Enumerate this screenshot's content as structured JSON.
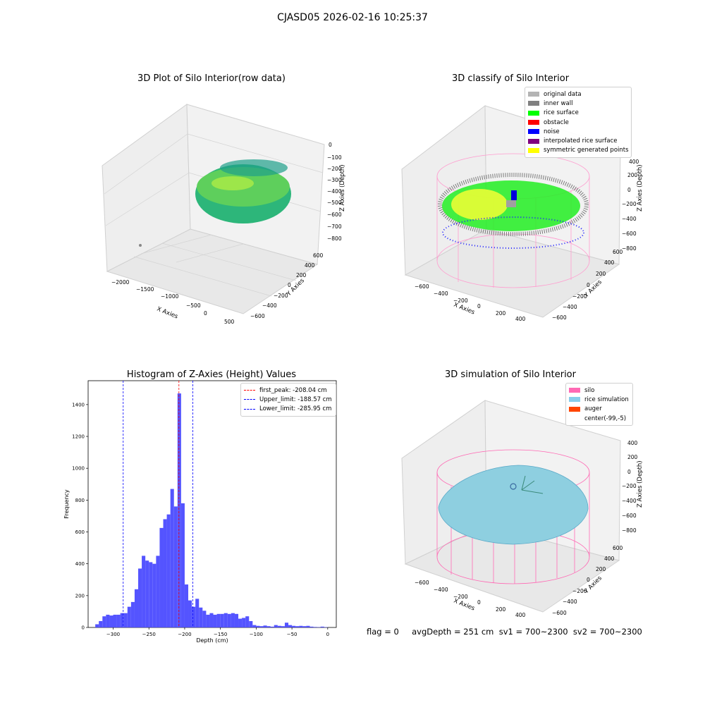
{
  "header": {
    "title": "CJASD05 2026-02-16 10:25:37"
  },
  "panels": {
    "raw": {
      "title": "3D Plot of Silo Interior(row data)",
      "x_label": "X Axies",
      "y_label": "Y Axies",
      "z_label": "Z Axies (Depth)",
      "x_ticks": [
        "−2000",
        "−1500",
        "−1000",
        "−500",
        "0",
        "500"
      ],
      "y_ticks": [
        "−600",
        "−400",
        "−200",
        "0",
        "200",
        "400",
        "600"
      ],
      "z_ticks": [
        "0",
        "−100",
        "−200",
        "−300",
        "−400",
        "−500",
        "−600",
        "−700",
        "−800"
      ]
    },
    "classify": {
      "title": "3D classify of Silo Interior",
      "x_label": "X Axies",
      "y_label": "Y Axies",
      "z_label": "Z Axies (Depth)",
      "x_ticks": [
        "−600",
        "−400",
        "−200",
        "0",
        "200",
        "400"
      ],
      "y_ticks": [
        "−600",
        "−400",
        "−200",
        "0",
        "200",
        "400",
        "600"
      ],
      "z_ticks": [
        "400",
        "200",
        "0",
        "−200",
        "−400",
        "−600",
        "−800"
      ],
      "legend": [
        {
          "label": "original data",
          "color": "#b4b4b4"
        },
        {
          "label": "inner wall",
          "color": "#808080"
        },
        {
          "label": "rice surface",
          "color": "#00ff00"
        },
        {
          "label": "obstacle",
          "color": "#ff0000"
        },
        {
          "label": "noise",
          "color": "#0000ff"
        },
        {
          "label": "interpolated rice surface",
          "color": "#800080"
        },
        {
          "label": "symmetric generated points",
          "color": "#ffff00"
        }
      ]
    },
    "simulation": {
      "title": "3D simulation of Silo Interior",
      "x_label": "X Axies",
      "y_label": "Y Axies",
      "z_label": "Z Axies (Depth)",
      "x_ticks": [
        "−600",
        "−400",
        "−200",
        "0",
        "200",
        "400"
      ],
      "y_ticks": [
        "−600",
        "−400",
        "−200",
        "0",
        "200",
        "400",
        "600"
      ],
      "z_ticks": [
        "400",
        "200",
        "0",
        "−200",
        "−400",
        "−600",
        "−800"
      ],
      "legend": [
        {
          "label": "silo",
          "color": "#ff69b4"
        },
        {
          "label": "rice simulation",
          "color": "#87ceeb"
        },
        {
          "label": "auger",
          "color": "#ff4500"
        },
        {
          "label": "center(-99,-5)",
          "color": ""
        }
      ]
    }
  },
  "chart_data": {
    "type": "bar",
    "title": "Histogram of Z-Axies (Height) Values",
    "xlabel": "Depth (cm)",
    "ylabel": "Frequency",
    "xlim": [
      -335,
      12
    ],
    "ylim": [
      0,
      1550
    ],
    "x_ticks": [
      -300,
      -250,
      -200,
      -150,
      -100,
      -50,
      0
    ],
    "y_ticks": [
      0,
      200,
      400,
      600,
      800,
      1000,
      1200,
      1400
    ],
    "bar_color": "#4b4bff",
    "bins": [
      [
        -325,
        -320,
        20
      ],
      [
        -320,
        -315,
        40
      ],
      [
        -315,
        -310,
        70
      ],
      [
        -310,
        -305,
        80
      ],
      [
        -305,
        -300,
        75
      ],
      [
        -300,
        -295,
        80
      ],
      [
        -295,
        -290,
        80
      ],
      [
        -290,
        -285,
        90
      ],
      [
        -285,
        -280,
        90
      ],
      [
        -280,
        -275,
        130
      ],
      [
        -275,
        -270,
        160
      ],
      [
        -270,
        -265,
        240
      ],
      [
        -265,
        -260,
        370
      ],
      [
        -260,
        -255,
        450
      ],
      [
        -255,
        -250,
        420
      ],
      [
        -250,
        -245,
        410
      ],
      [
        -245,
        -240,
        400
      ],
      [
        -240,
        -235,
        450
      ],
      [
        -235,
        -230,
        625
      ],
      [
        -230,
        -225,
        680
      ],
      [
        -225,
        -220,
        710
      ],
      [
        -220,
        -215,
        870
      ],
      [
        -215,
        -210,
        760
      ],
      [
        -210,
        -205,
        1470
      ],
      [
        -205,
        -200,
        780
      ],
      [
        -200,
        -195,
        270
      ],
      [
        -195,
        -190,
        170
      ],
      [
        -190,
        -185,
        130
      ],
      [
        -185,
        -180,
        180
      ],
      [
        -180,
        -175,
        125
      ],
      [
        -175,
        -170,
        105
      ],
      [
        -170,
        -165,
        80
      ],
      [
        -165,
        -160,
        90
      ],
      [
        -160,
        -155,
        80
      ],
      [
        -155,
        -150,
        85
      ],
      [
        -150,
        -145,
        85
      ],
      [
        -145,
        -140,
        90
      ],
      [
        -140,
        -135,
        85
      ],
      [
        -135,
        -130,
        90
      ],
      [
        -130,
        -125,
        85
      ],
      [
        -125,
        -120,
        55
      ],
      [
        -120,
        -115,
        60
      ],
      [
        -115,
        -110,
        70
      ],
      [
        -110,
        -105,
        40
      ],
      [
        -105,
        -100,
        15
      ],
      [
        -100,
        -95,
        10
      ],
      [
        -95,
        -90,
        8
      ],
      [
        -90,
        -85,
        12
      ],
      [
        -85,
        -80,
        8
      ],
      [
        -80,
        -75,
        5
      ],
      [
        -75,
        -70,
        15
      ],
      [
        -70,
        -65,
        10
      ],
      [
        -65,
        -60,
        8
      ],
      [
        -60,
        -55,
        30
      ],
      [
        -55,
        -50,
        15
      ],
      [
        -50,
        -45,
        10
      ],
      [
        -45,
        -40,
        8
      ],
      [
        -40,
        -35,
        10
      ],
      [
        -35,
        -30,
        8
      ],
      [
        -30,
        -25,
        10
      ],
      [
        -25,
        -20,
        5
      ],
      [
        -20,
        -15,
        3
      ],
      [
        -15,
        -10,
        2
      ],
      [
        -10,
        -5,
        5
      ],
      [
        -5,
        0,
        2
      ]
    ],
    "lines": [
      {
        "label": "first_peak: -208.04 cm",
        "x": -208.04,
        "color": "#ff0000"
      },
      {
        "label": "Upper_limit: -188.57 cm",
        "x": -188.57,
        "color": "#0000ff"
      },
      {
        "label": "Lower_limit: -285.95 cm",
        "x": -285.95,
        "color": "#0000ff"
      }
    ]
  },
  "footer": {
    "text": "flag = 0     avgDepth = 251 cm  sv1 = 700~2300  sv2 = 700~2300"
  }
}
